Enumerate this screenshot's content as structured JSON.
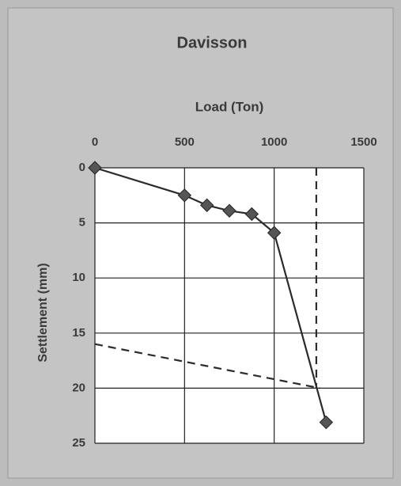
{
  "chart_data": {
    "type": "line",
    "title": "Davisson",
    "x_label": "Load (Ton)",
    "y_label": "Settlement (mm)",
    "xlim": [
      0,
      1500
    ],
    "xticks": [
      0,
      500,
      1000,
      1500
    ],
    "x_axis_position": "top",
    "ylim": [
      0,
      25
    ],
    "yticks": [
      0,
      5,
      10,
      15,
      20,
      25
    ],
    "invert_y": true,
    "grid": true,
    "series": [
      {
        "color": "#2b2b2b",
        "marker": "diamond",
        "marker_color": "#555555",
        "dashed": false,
        "x": [
          0,
          500,
          625,
          750,
          875,
          1000,
          1290
        ],
        "values": [
          0,
          2.5,
          3.4,
          3.9,
          4.2,
          5.9,
          23.1
        ]
      },
      {
        "color": "#2b2b2b",
        "marker": "none",
        "dashed": true,
        "x": [
          0,
          1255
        ],
        "values": [
          16,
          20
        ]
      },
      {
        "color": "#2b2b2b",
        "marker": "none",
        "dashed": true,
        "x": [
          1235,
          1235
        ],
        "values": [
          0,
          20
        ]
      }
    ]
  }
}
